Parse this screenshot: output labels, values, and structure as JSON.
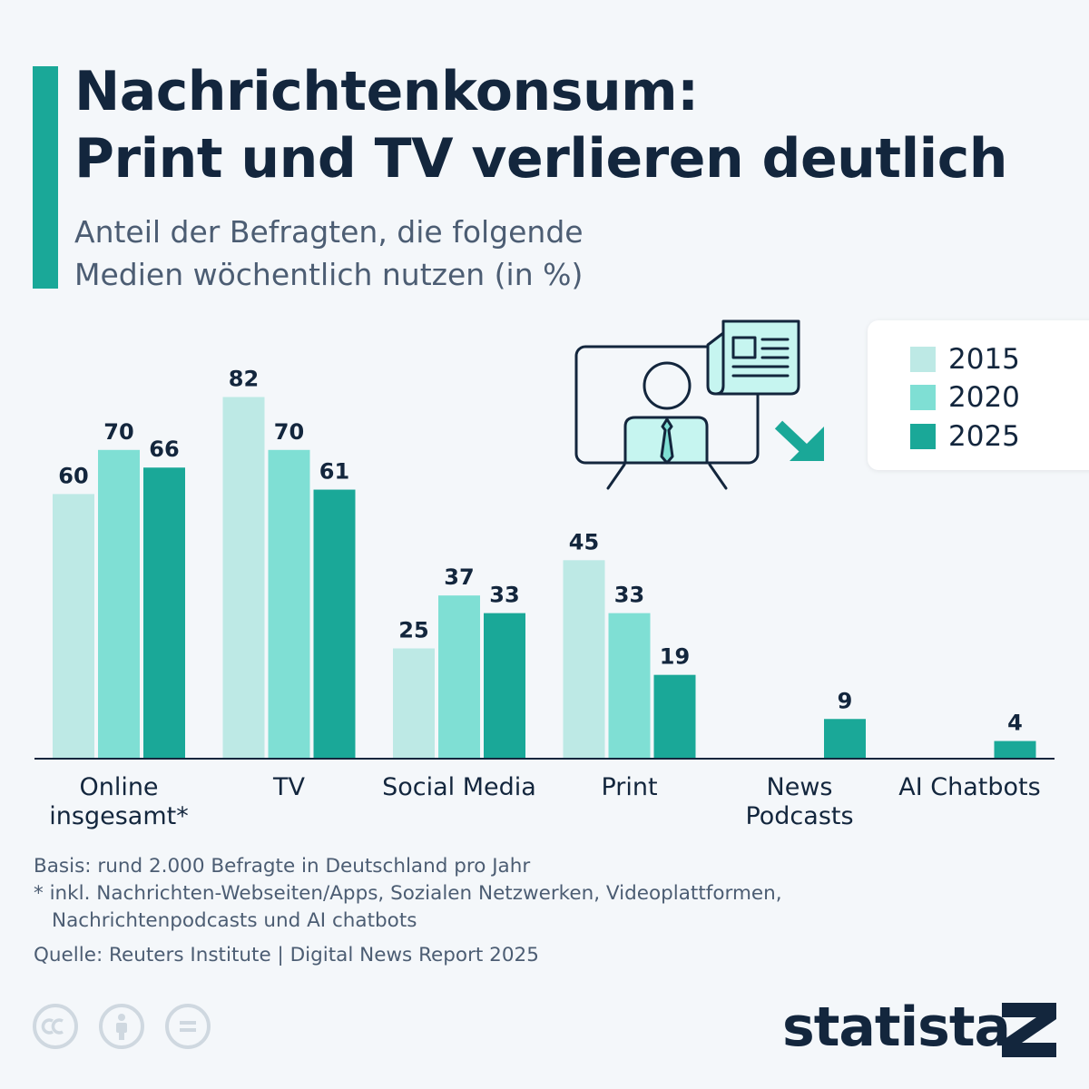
{
  "title_lines": [
    "Nachrichtenkonsum:",
    "Print und TV verlieren deutlich"
  ],
  "subtitle_lines": [
    "Anteil der Befragten, die folgende",
    "Medien wöchentlich nutzen (in %)"
  ],
  "colors": {
    "accent": "#1aa898",
    "series": [
      "#bde9e5",
      "#7fdfd4",
      "#1aa898"
    ],
    "text_dark": "#13263d",
    "text_muted": "#4c5d73"
  },
  "chart_data": {
    "type": "bar",
    "categories": [
      [
        "Online",
        "insgesamt*"
      ],
      [
        "TV"
      ],
      [
        "Social Media"
      ],
      [
        "Print"
      ],
      [
        "News",
        "Podcasts"
      ],
      [
        "AI Chatbots"
      ]
    ],
    "series": [
      {
        "name": "2015",
        "values": [
          60,
          82,
          25,
          45,
          null,
          null
        ]
      },
      {
        "name": "2020",
        "values": [
          70,
          70,
          37,
          33,
          null,
          null
        ]
      },
      {
        "name": "2025",
        "values": [
          66,
          61,
          33,
          19,
          9,
          4
        ]
      }
    ],
    "ylim": [
      0,
      100
    ],
    "grid": false,
    "legend_position": "top-right"
  },
  "notes": {
    "basis": "Basis: rund 2.000 Befragte in Deutschland pro Jahr",
    "footnote_line1": "* inkl. Nachrichten-Webseiten/Apps, Sozialen Netzwerken, Videoplattformen,",
    "footnote_line2": "Nachrichtenpodcasts und AI chatbots",
    "source": "Quelle: Reuters Institute | Digital News Report 2025"
  },
  "logo": {
    "text": "statista"
  },
  "icons": [
    "cc-icon",
    "by-person-icon",
    "nd-equals-icon",
    "tv-news-anchor-icon",
    "newspaper-icon",
    "down-arrow-icon"
  ]
}
